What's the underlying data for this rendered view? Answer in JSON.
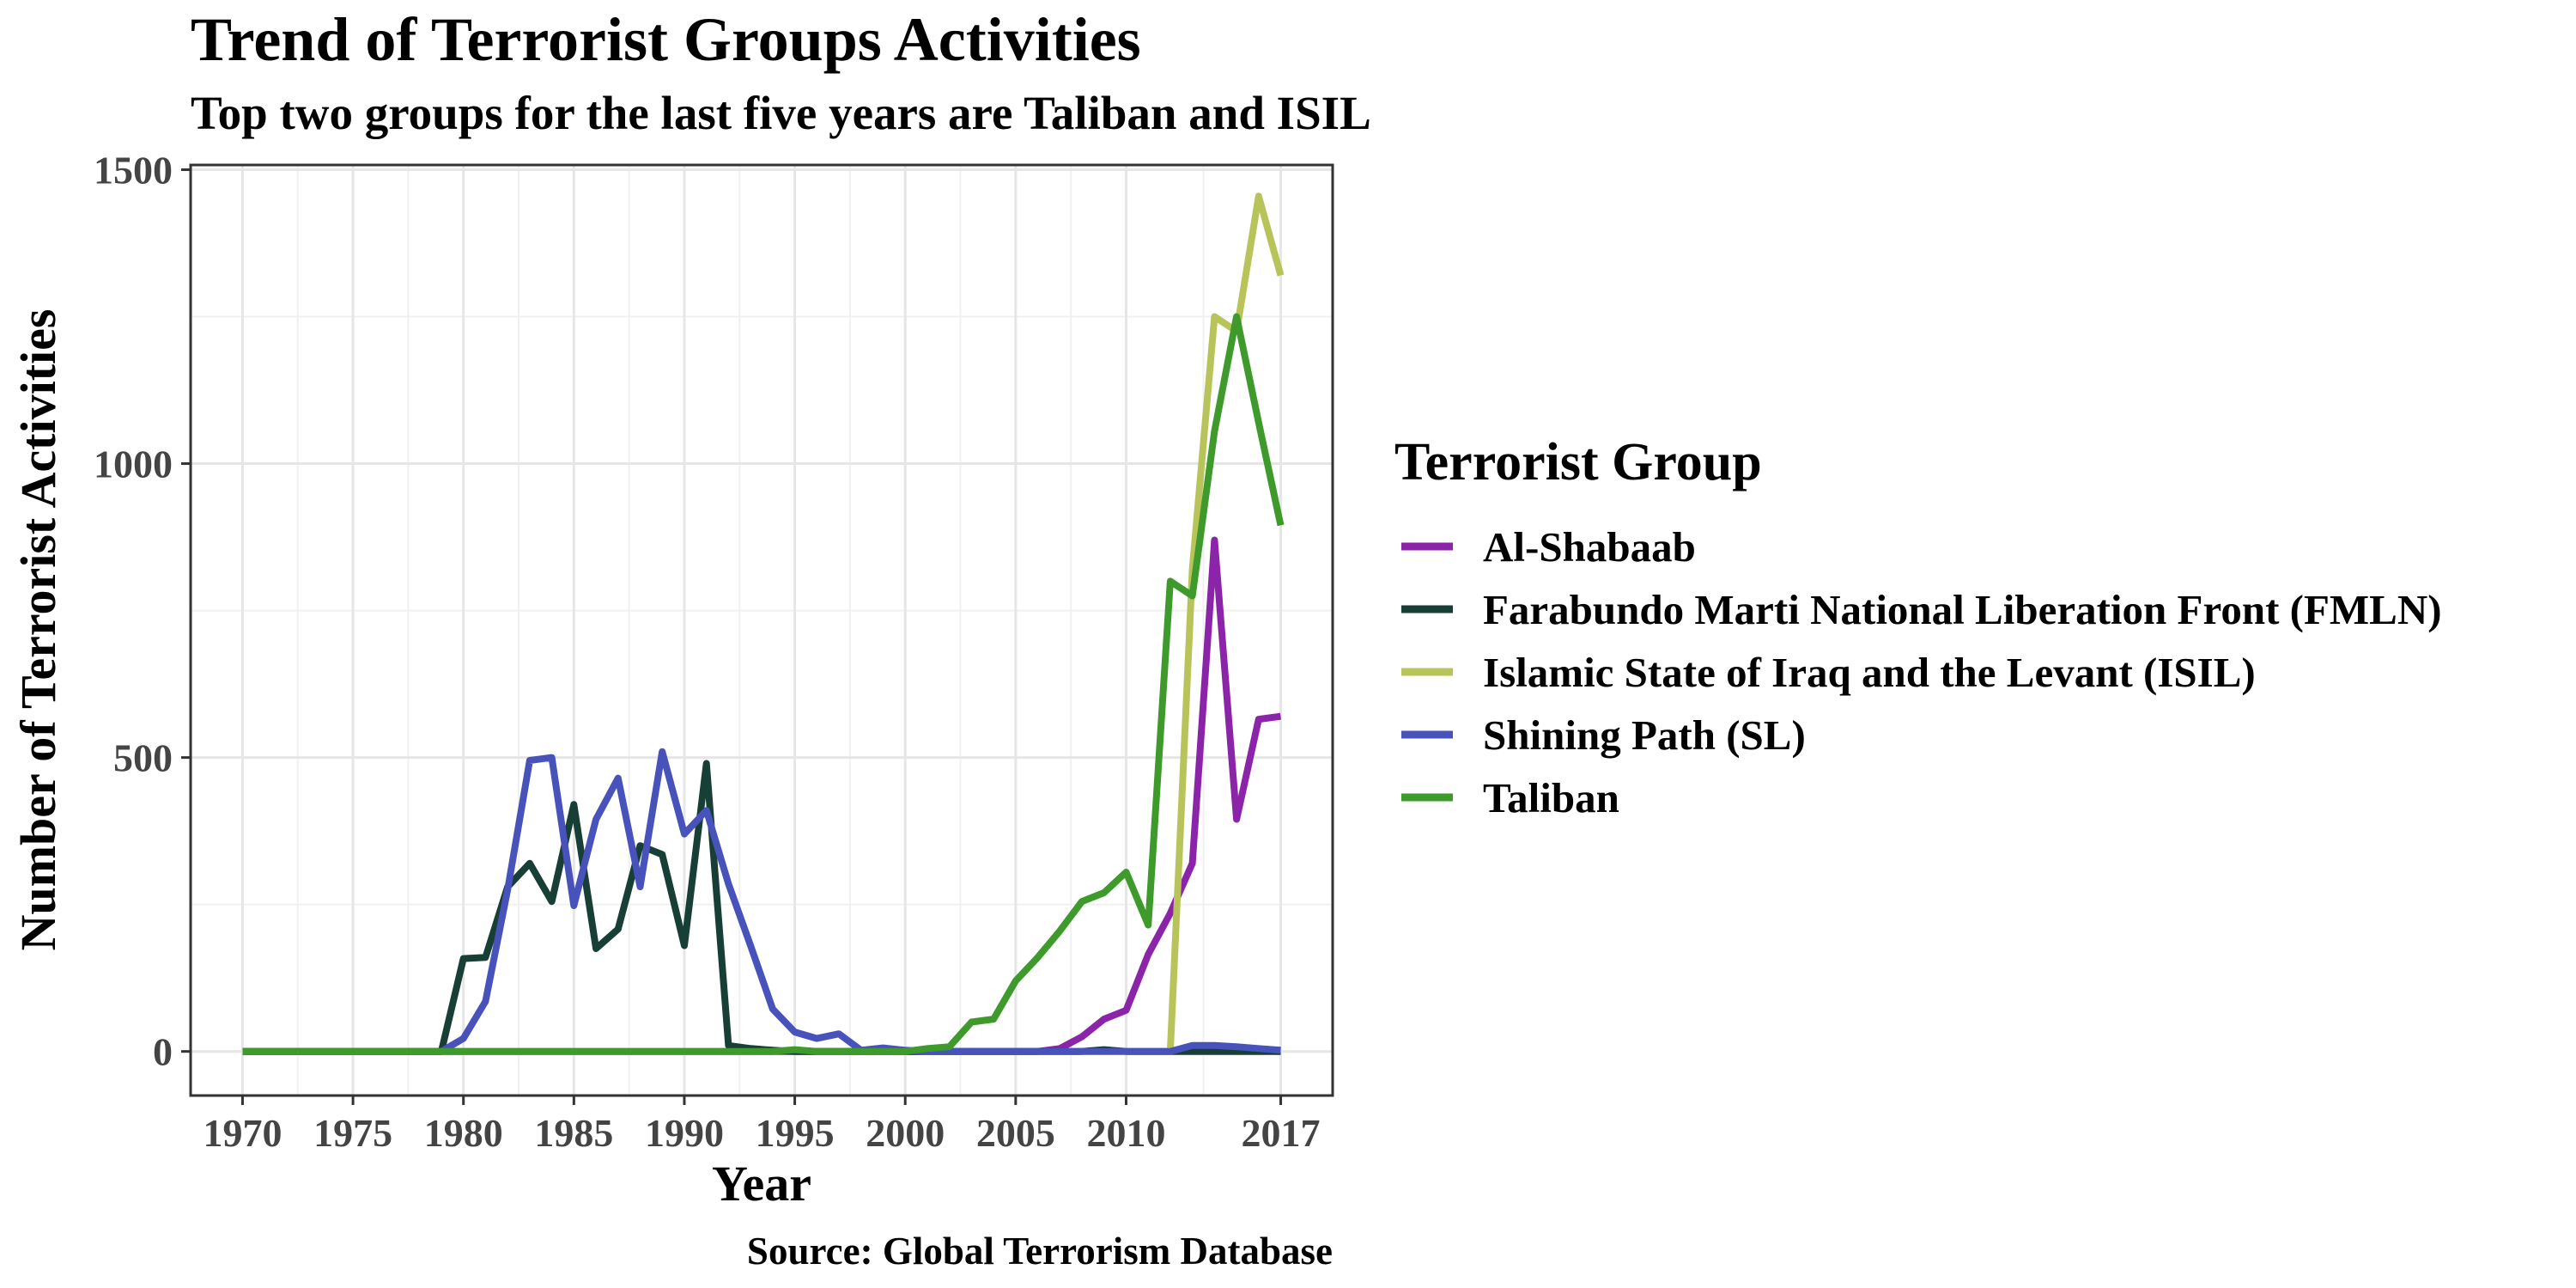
{
  "chart_data": {
    "type": "line",
    "title": "Trend of Terrorist Groups Activities",
    "subtitle": "Top two groups for the last five years are Taliban and ISIL",
    "xlabel": "Year",
    "ylabel": "Number of Terrorist Activities",
    "caption": "Source: Global Terrorism Database",
    "legend_title": "Terrorist Group",
    "legend_position": "right",
    "grid": true,
    "xlim": [
      1970,
      2017
    ],
    "ylim": [
      0,
      1500
    ],
    "x_ticks": [
      "1970",
      "1975",
      "1980",
      "1985",
      "1990",
      "1995",
      "2000",
      "2005",
      "2010",
      "2017"
    ],
    "y_ticks": [
      "0",
      "500",
      "1000",
      "1500"
    ],
    "x": [
      1970,
      1971,
      1972,
      1973,
      1974,
      1975,
      1976,
      1977,
      1978,
      1979,
      1980,
      1981,
      1982,
      1983,
      1984,
      1985,
      1986,
      1987,
      1988,
      1989,
      1990,
      1991,
      1992,
      1993,
      1994,
      1995,
      1996,
      1997,
      1998,
      1999,
      2000,
      2001,
      2002,
      2003,
      2004,
      2005,
      2006,
      2007,
      2008,
      2009,
      2010,
      2011,
      2012,
      2013,
      2014,
      2015,
      2016,
      2017
    ],
    "series": [
      {
        "name": "Al-Shabaab",
        "color": "#8b24a8",
        "values": [
          0,
          0,
          0,
          0,
          0,
          0,
          0,
          0,
          0,
          0,
          0,
          0,
          0,
          0,
          0,
          0,
          0,
          0,
          0,
          0,
          0,
          0,
          0,
          0,
          0,
          0,
          0,
          0,
          0,
          0,
          0,
          0,
          0,
          0,
          0,
          0,
          0,
          5,
          25,
          55,
          70,
          165,
          235,
          320,
          870,
          395,
          565,
          570
        ]
      },
      {
        "name": "Farabundo Marti National Liberation Front (FMLN)",
        "color": "#173f35",
        "values": [
          0,
          0,
          0,
          0,
          0,
          0,
          0,
          0,
          0,
          0,
          158,
          160,
          280,
          320,
          255,
          420,
          175,
          208,
          350,
          335,
          180,
          490,
          10,
          5,
          2,
          0,
          0,
          0,
          0,
          0,
          0,
          0,
          0,
          0,
          0,
          0,
          0,
          0,
          0,
          3,
          0,
          0,
          0,
          0,
          0,
          0,
          0,
          0
        ]
      },
      {
        "name": "Islamic State of Iraq and the Levant (ISIL)",
        "color": "#b8c45a",
        "values": [
          null,
          null,
          null,
          null,
          null,
          null,
          null,
          null,
          null,
          null,
          null,
          null,
          null,
          null,
          null,
          null,
          null,
          null,
          null,
          null,
          null,
          null,
          null,
          null,
          null,
          null,
          null,
          null,
          null,
          null,
          null,
          null,
          null,
          null,
          null,
          null,
          null,
          null,
          null,
          null,
          null,
          null,
          0,
          820,
          1250,
          1225,
          1455,
          1320
        ]
      },
      {
        "name": "Shining Path (SL)",
        "color": "#4752bb",
        "values": [
          0,
          0,
          0,
          0,
          0,
          0,
          0,
          0,
          0,
          0,
          22,
          85,
          275,
          495,
          500,
          248,
          395,
          465,
          280,
          510,
          370,
          410,
          285,
          180,
          72,
          33,
          22,
          30,
          2,
          6,
          2,
          0,
          0,
          0,
          0,
          0,
          0,
          0,
          0,
          0,
          0,
          0,
          0,
          10,
          10,
          8,
          5,
          2
        ]
      },
      {
        "name": "Taliban",
        "color": "#3d9a2b",
        "values": [
          0,
          0,
          0,
          0,
          0,
          0,
          0,
          0,
          0,
          0,
          0,
          0,
          0,
          0,
          0,
          0,
          0,
          0,
          0,
          0,
          0,
          0,
          0,
          0,
          0,
          3,
          0,
          0,
          0,
          0,
          0,
          5,
          8,
          50,
          55,
          120,
          160,
          205,
          255,
          270,
          305,
          215,
          800,
          775,
          1055,
          1250,
          1070,
          895
        ]
      }
    ]
  }
}
